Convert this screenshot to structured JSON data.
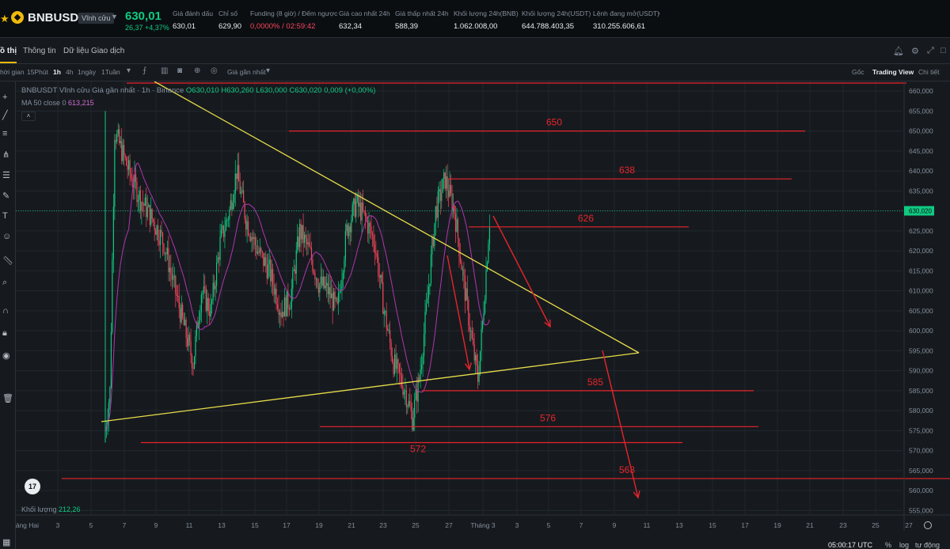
{
  "ticker": {
    "symbol": "BNBUSDT",
    "contract_type": "Vĩnh cửu",
    "last_price": "630,01",
    "change": "26,37 +4,37%",
    "stats": [
      {
        "label": "Giá đánh dấu",
        "value": "630,01"
      },
      {
        "label": "Chỉ số",
        "value": "629,90"
      },
      {
        "label": "Funding (8 giờ) / Đếm ngược",
        "value": "0,0000% / 02:59:42"
      },
      {
        "label": "Giá cao nhất 24h",
        "value": "632,34"
      },
      {
        "label": "Giá thấp nhất 24h",
        "value": "588,39"
      },
      {
        "label": "Khối lượng 24h(BNB)",
        "value": "1.062.008,00"
      },
      {
        "label": "Khối lượng 24h(USDT)",
        "value": "644.788.403,35"
      },
      {
        "label": "Lệnh đang mở(USDT)",
        "value": "310.255.606,61"
      }
    ]
  },
  "tabs": [
    "ồ thị",
    "Thông tin",
    "Dữ liệu Giao dịch"
  ],
  "toolbar": {
    "time_label": "hời gian",
    "intervals": [
      "15Phút",
      "1h",
      "4h",
      "1ngày",
      "1Tuần"
    ],
    "active_interval": "1h",
    "price_source": "Giá gần nhất",
    "views": [
      "Gốc",
      "Trading View",
      "Chi tiết"
    ],
    "active_view": "Trading View"
  },
  "chart": {
    "legend_title": "BNBUSDT Vĩnh cửu Giá gần nhất · 1h · Binance",
    "legend_ohlc": "O630,010 H630,260 L630,000 C630,020 0,009 (+0,00%)",
    "ma_label": "MA 50 close 0",
    "ma_value": "613,215",
    "volume_label": "Khối lượng",
    "volume_value": "212,26",
    "current_price_tag": "630,020",
    "status_time": "05:00:17 UTC",
    "status_opts": [
      "%",
      "log",
      "tự động"
    ],
    "colors": {
      "up": "#0ecb81",
      "down": "#f6465d",
      "ma": "#b035b0",
      "trend": "#e8dc4a",
      "level": "#e8242c"
    }
  },
  "chart_data": {
    "type": "candlestick",
    "pair": "BNBUSDT",
    "interval": "1h",
    "ylim": [
      550,
      662
    ],
    "y_ticks": [
      "660,000",
      "655,000",
      "650,000",
      "645,000",
      "640,000",
      "635,000",
      "630,000",
      "625,000",
      "620,000",
      "615,000",
      "610,000",
      "605,000",
      "600,000",
      "595,000",
      "590,000",
      "585,000",
      "580,000",
      "575,000",
      "570,000",
      "565,000",
      "560,000",
      "555,000"
    ],
    "x_ticks": [
      "háng Hai",
      "3",
      "5",
      "7",
      "9",
      "11",
      "13",
      "15",
      "17",
      "19",
      "21",
      "23",
      "25",
      "27",
      "Tháng 3",
      "3",
      "5",
      "7",
      "9",
      "11",
      "13",
      "15",
      "17",
      "19",
      "21",
      "23",
      "25",
      "27"
    ],
    "key_levels": [
      {
        "label": "650",
        "price": 650
      },
      {
        "label": "638",
        "price": 638
      },
      {
        "label": "626",
        "price": 626
      },
      {
        "label": "585",
        "price": 585
      },
      {
        "label": "576",
        "price": 576
      },
      {
        "label": "572",
        "price": 572
      },
      {
        "label": "563",
        "price": 563
      }
    ],
    "last_close": 630.02,
    "ma50_last": 613.215
  }
}
